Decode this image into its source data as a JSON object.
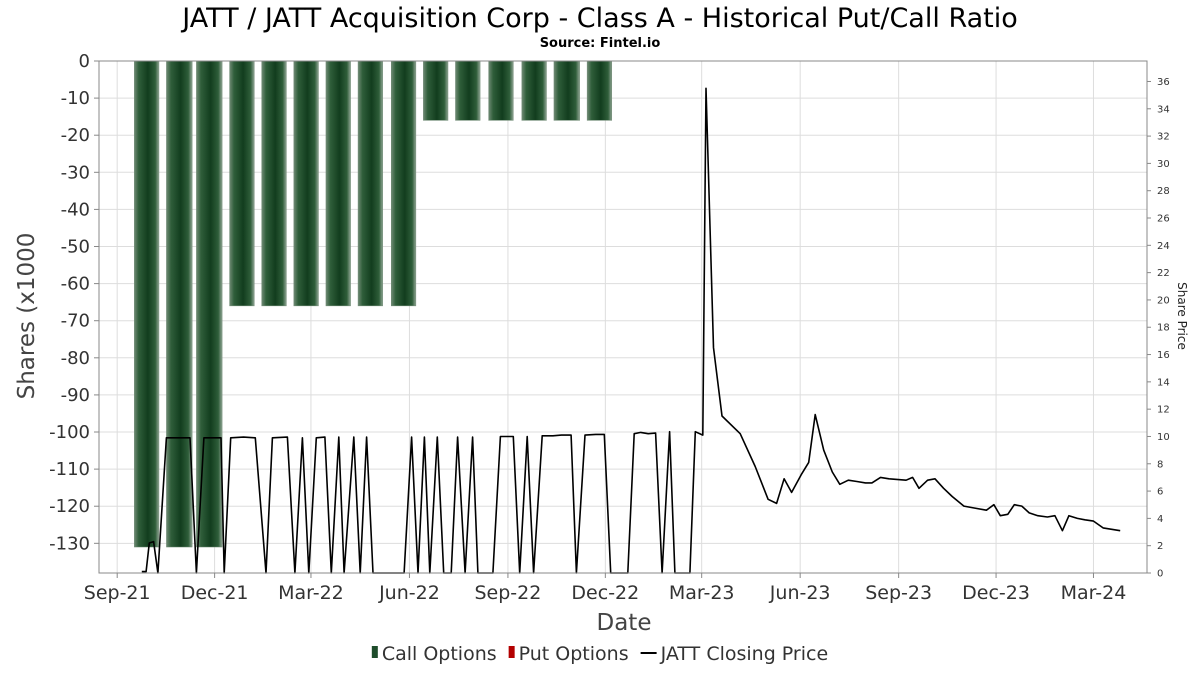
{
  "chart_data": {
    "type": "bar",
    "title": "JATT / JATT Acquisition Corp - Class A - Historical Put/Call Ratio",
    "subtitle": "Source: Fintel.io",
    "xlabel": "Date",
    "ylabel": "Shares (x1000",
    "ylabel_right": "Share Price",
    "x_range": [
      "2021-08-15",
      "2024-04-20"
    ],
    "ylim": [
      -138,
      0
    ],
    "ylim_right": [
      0,
      37.5
    ],
    "x_ticks": [
      {
        "date": "2021-09-01",
        "label": "Sep-21"
      },
      {
        "date": "2021-12-01",
        "label": "Dec-21"
      },
      {
        "date": "2022-03-01",
        "label": "Mar-22"
      },
      {
        "date": "2022-06-01",
        "label": "Jun-22"
      },
      {
        "date": "2022-09-01",
        "label": "Sep-22"
      },
      {
        "date": "2022-12-01",
        "label": "Dec-22"
      },
      {
        "date": "2023-03-01",
        "label": "Mar-23"
      },
      {
        "date": "2023-06-01",
        "label": "Jun-23"
      },
      {
        "date": "2023-09-01",
        "label": "Sep-23"
      },
      {
        "date": "2023-12-01",
        "label": "Dec-23"
      },
      {
        "date": "2024-03-01",
        "label": "Mar-24"
      }
    ],
    "y_ticks_left": [
      0,
      -10,
      -20,
      -30,
      -40,
      -50,
      -60,
      -70,
      -80,
      -90,
      -100,
      -110,
      -120,
      -130
    ],
    "y_ticks_right": [
      0,
      2,
      4,
      6,
      8,
      10,
      12,
      14,
      16,
      18,
      20,
      22,
      24,
      26,
      28,
      30,
      32,
      34,
      36
    ],
    "legend": [
      {
        "label": "Call Options",
        "color": "#1e4d2b",
        "kind": "bar"
      },
      {
        "label": "Put Options",
        "color": "#b30000",
        "kind": "bar"
      },
      {
        "label": "JATT Closing Price",
        "color": "#000000",
        "kind": "line"
      }
    ],
    "series": [
      {
        "name": "Call Options",
        "color": "#1e4d2b",
        "bars": [
          {
            "start": "2021-09-17",
            "end": "2021-10-10",
            "value": -131
          },
          {
            "start": "2021-10-17",
            "end": "2021-11-10",
            "value": -131
          },
          {
            "start": "2021-11-14",
            "end": "2021-12-08",
            "value": -131
          },
          {
            "start": "2021-12-15",
            "end": "2022-01-07",
            "value": -66
          },
          {
            "start": "2022-01-14",
            "end": "2022-02-06",
            "value": -66
          },
          {
            "start": "2022-02-13",
            "end": "2022-03-08",
            "value": -66
          },
          {
            "start": "2022-03-15",
            "end": "2022-04-07",
            "value": -66
          },
          {
            "start": "2022-04-14",
            "end": "2022-05-07",
            "value": -66
          },
          {
            "start": "2022-05-15",
            "end": "2022-06-07",
            "value": -66
          },
          {
            "start": "2022-06-14",
            "end": "2022-07-07",
            "value": -16
          },
          {
            "start": "2022-07-14",
            "end": "2022-08-06",
            "value": -16
          },
          {
            "start": "2022-08-14",
            "end": "2022-09-06",
            "value": -16
          },
          {
            "start": "2022-09-14",
            "end": "2022-10-07",
            "value": -16
          },
          {
            "start": "2022-10-14",
            "end": "2022-11-07",
            "value": -16
          },
          {
            "start": "2022-11-14",
            "end": "2022-12-07",
            "value": -16
          }
        ]
      },
      {
        "name": "Put Options",
        "color": "#b30000",
        "bars": []
      },
      {
        "name": "JATT Closing Price",
        "color": "#000000",
        "points": [
          [
            "2021-09-24",
            0.1
          ],
          [
            "2021-09-28",
            0.1
          ],
          [
            "2021-10-01",
            2.2
          ],
          [
            "2021-10-05",
            2.3
          ],
          [
            "2021-10-09",
            0
          ],
          [
            "2021-10-17",
            9.9
          ],
          [
            "2021-10-24",
            9.9
          ],
          [
            "2021-11-01",
            9.9
          ],
          [
            "2021-11-08",
            9.9
          ],
          [
            "2021-11-14",
            0
          ],
          [
            "2021-11-21",
            9.9
          ],
          [
            "2021-11-30",
            9.9
          ],
          [
            "2021-12-07",
            9.9
          ],
          [
            "2021-12-10",
            0
          ],
          [
            "2021-12-16",
            9.9
          ],
          [
            "2021-12-28",
            9.95
          ],
          [
            "2022-01-08",
            9.9
          ],
          [
            "2022-01-18",
            0
          ],
          [
            "2022-01-24",
            9.9
          ],
          [
            "2022-02-07",
            9.95
          ],
          [
            "2022-02-14",
            0
          ],
          [
            "2022-02-21",
            9.9
          ],
          [
            "2022-02-27",
            0
          ],
          [
            "2022-03-06",
            9.9
          ],
          [
            "2022-03-14",
            9.95
          ],
          [
            "2022-03-20",
            0
          ],
          [
            "2022-03-27",
            9.95
          ],
          [
            "2022-04-01",
            0
          ],
          [
            "2022-04-10",
            9.95
          ],
          [
            "2022-04-16",
            0
          ],
          [
            "2022-04-22",
            9.95
          ],
          [
            "2022-04-28",
            0
          ],
          [
            "2022-05-05",
            0
          ],
          [
            "2022-05-12",
            0
          ],
          [
            "2022-05-20",
            0
          ],
          [
            "2022-05-27",
            0
          ],
          [
            "2022-06-03",
            9.95
          ],
          [
            "2022-06-09",
            0
          ],
          [
            "2022-06-15",
            9.95
          ],
          [
            "2022-06-20",
            0
          ],
          [
            "2022-06-27",
            9.95
          ],
          [
            "2022-07-03",
            0
          ],
          [
            "2022-07-10",
            0
          ],
          [
            "2022-07-16",
            9.95
          ],
          [
            "2022-07-23",
            0
          ],
          [
            "2022-07-30",
            9.95
          ],
          [
            "2022-08-04",
            0
          ],
          [
            "2022-08-11",
            0
          ],
          [
            "2022-08-18",
            0
          ],
          [
            "2022-08-25",
            10.0
          ],
          [
            "2022-09-06",
            10.0
          ],
          [
            "2022-09-12",
            0
          ],
          [
            "2022-09-19",
            10.0
          ],
          [
            "2022-09-25",
            0
          ],
          [
            "2022-10-03",
            10.05
          ],
          [
            "2022-10-13",
            10.05
          ],
          [
            "2022-10-21",
            10.1
          ],
          [
            "2022-10-30",
            10.1
          ],
          [
            "2022-11-04",
            0
          ],
          [
            "2022-11-12",
            10.1
          ],
          [
            "2022-11-22",
            10.15
          ],
          [
            "2022-11-30",
            10.15
          ],
          [
            "2022-12-06",
            0
          ],
          [
            "2022-12-11",
            0
          ],
          [
            "2022-12-16",
            0
          ],
          [
            "2022-12-22",
            0
          ],
          [
            "2022-12-28",
            10.2
          ],
          [
            "2023-01-03",
            10.3
          ],
          [
            "2023-01-10",
            10.2
          ],
          [
            "2023-01-17",
            10.25
          ],
          [
            "2023-01-23",
            0
          ],
          [
            "2023-01-30",
            10.35
          ],
          [
            "2023-02-04",
            0
          ],
          [
            "2023-02-12",
            0
          ],
          [
            "2023-02-18",
            0
          ],
          [
            "2023-02-23",
            10.35
          ],
          [
            "2023-03-02",
            10.1
          ],
          [
            "2023-03-05",
            35.5
          ],
          [
            "2023-03-12",
            16.5
          ],
          [
            "2023-03-20",
            11.5
          ],
          [
            "2023-04-06",
            10.2
          ],
          [
            "2023-04-20",
            7.8
          ],
          [
            "2023-05-02",
            5.4
          ],
          [
            "2023-05-10",
            5.1
          ],
          [
            "2023-05-17",
            6.9
          ],
          [
            "2023-05-24",
            5.9
          ],
          [
            "2023-06-02",
            7.2
          ],
          [
            "2023-06-09",
            8.1
          ],
          [
            "2023-06-15",
            11.6
          ],
          [
            "2023-06-23",
            9.0
          ],
          [
            "2023-07-01",
            7.4
          ],
          [
            "2023-07-08",
            6.5
          ],
          [
            "2023-07-16",
            6.8
          ],
          [
            "2023-07-24",
            6.7
          ],
          [
            "2023-08-01",
            6.6
          ],
          [
            "2023-08-07",
            6.6
          ],
          [
            "2023-08-15",
            7.0
          ],
          [
            "2023-08-23",
            6.9
          ],
          [
            "2023-09-08",
            6.8
          ],
          [
            "2023-09-14",
            7.0
          ],
          [
            "2023-09-20",
            6.2
          ],
          [
            "2023-09-28",
            6.8
          ],
          [
            "2023-10-05",
            6.9
          ],
          [
            "2023-10-13",
            6.2
          ],
          [
            "2023-10-21",
            5.6
          ],
          [
            "2023-11-01",
            4.9
          ],
          [
            "2023-11-08",
            4.8
          ],
          [
            "2023-11-22",
            4.6
          ],
          [
            "2023-11-29",
            5.0
          ],
          [
            "2023-12-05",
            4.2
          ],
          [
            "2023-12-12",
            4.3
          ],
          [
            "2023-12-18",
            5.0
          ],
          [
            "2023-12-25",
            4.9
          ],
          [
            "2024-01-01",
            4.4
          ],
          [
            "2024-01-09",
            4.2
          ],
          [
            "2024-01-18",
            4.1
          ],
          [
            "2024-01-25",
            4.2
          ],
          [
            "2024-02-01",
            3.1
          ],
          [
            "2024-02-07",
            4.2
          ],
          [
            "2024-02-15",
            4.0
          ],
          [
            "2024-02-22",
            3.9
          ],
          [
            "2024-03-01",
            3.8
          ],
          [
            "2024-03-10",
            3.3
          ],
          [
            "2024-03-18",
            3.2
          ],
          [
            "2024-03-26",
            3.1
          ]
        ]
      }
    ]
  }
}
